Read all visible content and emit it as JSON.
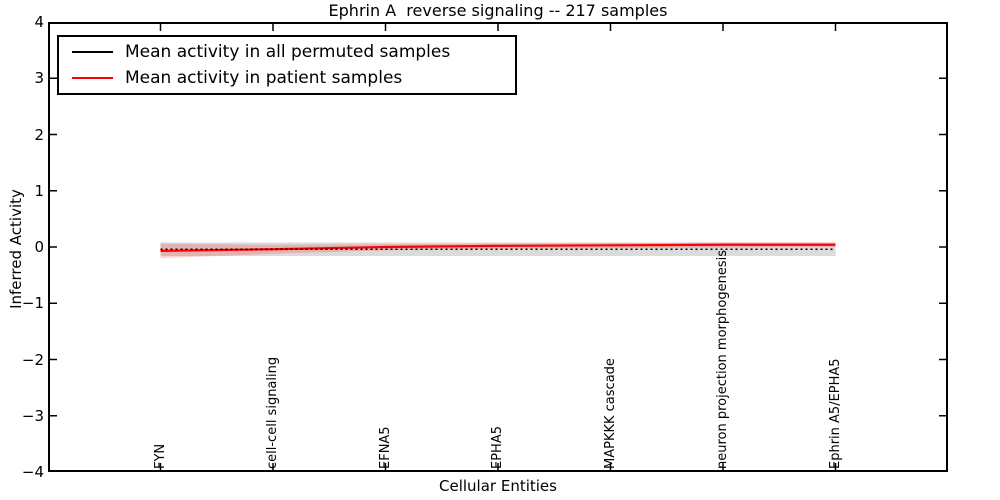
{
  "title": "Ephrin A  reverse signaling -- 217 samples",
  "axes": {
    "xlabel": "Cellular Entities",
    "ylabel": "Inferred Activity",
    "ytick_labels": [
      "4",
      "3",
      "2",
      "1",
      "0",
      "−1",
      "−2",
      "−3",
      "−4"
    ]
  },
  "legend": {
    "position": "upper left",
    "items": [
      {
        "label": "Mean activity in all permuted samples",
        "color": "#000000"
      },
      {
        "label": "Mean activity in patient samples",
        "color": "#ff0000"
      }
    ]
  },
  "chart_data": {
    "type": "line",
    "title": "Ephrin A  reverse signaling -- 217 samples",
    "xlabel": "Cellular Entities",
    "ylabel": "Inferred Activity",
    "ylim": [
      -4,
      4
    ],
    "xlim": [
      0,
      8
    ],
    "grid": false,
    "legend_position": "upper left",
    "categories": [
      "FYN",
      "cell-cell signaling",
      "EFNA5",
      "EPHA5",
      "MAPKKK cascade",
      "neuron projection morphogenesis",
      "Ephrin A5/EPHA5"
    ],
    "category_x_positions": [
      1,
      2,
      3,
      4,
      5,
      6,
      7
    ],
    "series": [
      {
        "name": "Mean activity in all permuted samples",
        "color": "#000000",
        "line_style": "dotted",
        "line_width": 1.6,
        "values": [
          -0.04,
          -0.04,
          -0.04,
          -0.04,
          -0.04,
          -0.04,
          -0.04
        ]
      },
      {
        "name": "Mean activity in patient samples",
        "color": "#ff0000",
        "line_style": "solid",
        "line_width": 2.2,
        "values": [
          -0.07,
          -0.04,
          0.0,
          0.02,
          0.03,
          0.04,
          0.04
        ]
      }
    ],
    "bands": [
      {
        "name": "permuted-samples-spread-band",
        "fill": "#999999",
        "opacity": 0.35,
        "upper": [
          0.08,
          0.08,
          0.08,
          0.08,
          0.08,
          0.08,
          0.08
        ],
        "lower": [
          -0.16,
          -0.16,
          -0.16,
          -0.16,
          -0.16,
          -0.16,
          -0.16
        ]
      },
      {
        "name": "patient-samples-spread-band",
        "fill": "#ff0000",
        "opacity": 0.18,
        "upper": [
          0.06,
          0.04,
          0.05,
          0.06,
          0.07,
          0.08,
          0.08
        ],
        "lower": [
          -0.2,
          -0.12,
          -0.06,
          -0.03,
          -0.02,
          -0.01,
          0.0
        ]
      }
    ]
  },
  "plot_style": {
    "frame_color": "#000000",
    "background": "#ffffff",
    "tick_direction": "in",
    "tick_length": 7
  }
}
